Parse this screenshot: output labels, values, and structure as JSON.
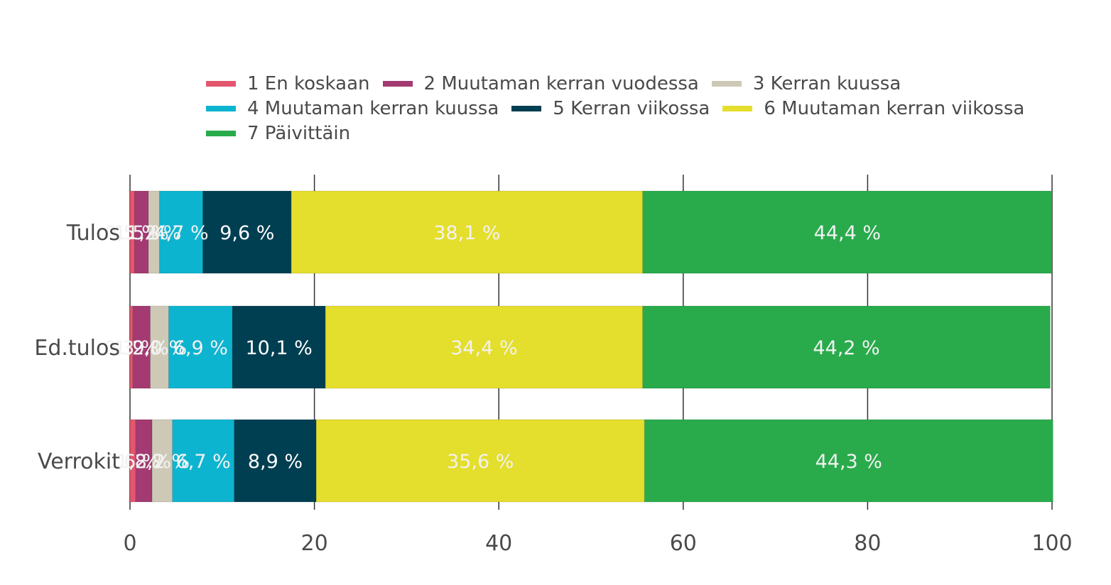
{
  "chart_data": {
    "type": "bar",
    "orientation": "horizontal",
    "stacked": true,
    "categories": [
      "Tulos",
      "Ed.tulos",
      "Verrokit"
    ],
    "series": [
      {
        "name": "1 En koskaan",
        "color": "#e3566e",
        "values": [
          0.5,
          0.3,
          0.6
        ],
        "labels": [
          "0,5 %",
          "0,3 %",
          "0,6 %"
        ]
      },
      {
        "name": "2 Muutaman kerran vuodessa",
        "color": "#a33a72",
        "values": [
          1.5,
          1.9,
          1.8
        ],
        "labels": [
          "1,5 %",
          "1,9 %",
          "1,8 %"
        ]
      },
      {
        "name": "3 Kerran kuussa",
        "color": "#cdc9b6",
        "values": [
          1.2,
          2.0,
          2.2
        ],
        "labels": [
          "1,2 %",
          "2,0 %",
          "2,2 %"
        ]
      },
      {
        "name": "4 Muutaman kerran kuussa",
        "color": "#0db4d0",
        "values": [
          4.7,
          6.9,
          6.7
        ],
        "labels": [
          "4,7 %",
          "6,9 %",
          "6,7 %"
        ]
      },
      {
        "name": "5 Kerran viikossa",
        "color": "#003f52",
        "values": [
          9.6,
          10.1,
          8.9
        ],
        "labels": [
          "9,6 %",
          "10,1 %",
          "8,9 %"
        ]
      },
      {
        "name": "6 Muutaman kerran viikossa",
        "color": "#e4de2c",
        "values": [
          38.1,
          34.4,
          35.6
        ],
        "labels": [
          "38,1 %",
          "34,4 %",
          "35,6 %"
        ]
      },
      {
        "name": "7 Päivittäin",
        "color": "#29ab4c",
        "values": [
          44.4,
          44.2,
          44.3
        ],
        "labels": [
          "44,4 %",
          "44,2 %",
          "44,3 %"
        ]
      }
    ],
    "xlim": [
      0,
      100
    ],
    "xticks": [
      "0",
      "20",
      "40",
      "60",
      "80",
      "100"
    ],
    "grid": true,
    "legend_position": "top"
  }
}
